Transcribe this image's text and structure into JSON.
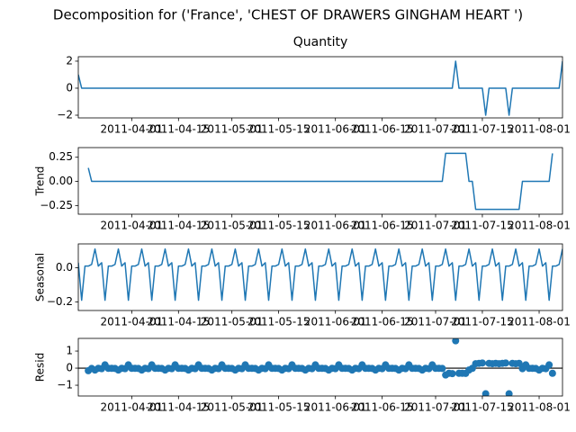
{
  "chart_data": {
    "title": "Decomposition for ('France', 'CHEST OF DRAWERS GINGHAM HEART ')",
    "color": "#1f77b4",
    "xlim": [
      "2011-03-16",
      "2011-08-08"
    ],
    "xticks": [
      "2011-04-01",
      "2011-04-15",
      "2011-05-01",
      "2011-05-15",
      "2011-06-01",
      "2011-06-15",
      "2011-07-01",
      "2011-07-15",
      "2011-08-01"
    ],
    "x": [
      "2011-03-16",
      "2011-03-17",
      "2011-03-18",
      "2011-03-19",
      "2011-03-20",
      "2011-03-21",
      "2011-03-22",
      "2011-03-23",
      "2011-03-24",
      "2011-03-25",
      "2011-03-26",
      "2011-03-27",
      "2011-03-28",
      "2011-03-29",
      "2011-03-30",
      "2011-03-31",
      "2011-04-01",
      "2011-04-02",
      "2011-04-03",
      "2011-04-04",
      "2011-04-05",
      "2011-04-06",
      "2011-04-07",
      "2011-04-08",
      "2011-04-09",
      "2011-04-10",
      "2011-04-11",
      "2011-04-12",
      "2011-04-13",
      "2011-04-14",
      "2011-04-15",
      "2011-04-16",
      "2011-04-17",
      "2011-04-18",
      "2011-04-19",
      "2011-04-20",
      "2011-04-21",
      "2011-04-22",
      "2011-04-23",
      "2011-04-24",
      "2011-04-25",
      "2011-04-26",
      "2011-04-27",
      "2011-04-28",
      "2011-04-29",
      "2011-04-30",
      "2011-05-01",
      "2011-05-02",
      "2011-05-03",
      "2011-05-04",
      "2011-05-05",
      "2011-05-06",
      "2011-05-07",
      "2011-05-08",
      "2011-05-09",
      "2011-05-10",
      "2011-05-11",
      "2011-05-12",
      "2011-05-13",
      "2011-05-14",
      "2011-05-15",
      "2011-05-16",
      "2011-05-17",
      "2011-05-18",
      "2011-05-19",
      "2011-05-20",
      "2011-05-21",
      "2011-05-22",
      "2011-05-23",
      "2011-05-24",
      "2011-05-25",
      "2011-05-26",
      "2011-05-27",
      "2011-05-28",
      "2011-05-29",
      "2011-05-30",
      "2011-05-31",
      "2011-06-01",
      "2011-06-02",
      "2011-06-03",
      "2011-06-04",
      "2011-06-05",
      "2011-06-06",
      "2011-06-07",
      "2011-06-08",
      "2011-06-09",
      "2011-06-10",
      "2011-06-11",
      "2011-06-12",
      "2011-06-13",
      "2011-06-14",
      "2011-06-15",
      "2011-06-16",
      "2011-06-17",
      "2011-06-18",
      "2011-06-19",
      "2011-06-20",
      "2011-06-21",
      "2011-06-22",
      "2011-06-23",
      "2011-06-24",
      "2011-06-25",
      "2011-06-26",
      "2011-06-27",
      "2011-06-28",
      "2011-06-29",
      "2011-06-30",
      "2011-07-01",
      "2011-07-02",
      "2011-07-03",
      "2011-07-04",
      "2011-07-05",
      "2011-07-06",
      "2011-07-07",
      "2011-07-08",
      "2011-07-09",
      "2011-07-10",
      "2011-07-11",
      "2011-07-12",
      "2011-07-13",
      "2011-07-14",
      "2011-07-15",
      "2011-07-16",
      "2011-07-17",
      "2011-07-18",
      "2011-07-19",
      "2011-07-20",
      "2011-07-21",
      "2011-07-22",
      "2011-07-23",
      "2011-07-24",
      "2011-07-25",
      "2011-07-26",
      "2011-07-27",
      "2011-07-28",
      "2011-07-29",
      "2011-07-30",
      "2011-07-31",
      "2011-08-01",
      "2011-08-02",
      "2011-08-03",
      "2011-08-04",
      "2011-08-05",
      "2011-08-06",
      "2011-08-07",
      "2011-08-08"
    ],
    "panels": [
      {
        "type": "line",
        "title": "Quantity",
        "ylim": [
          -2.2,
          2.33
        ],
        "yticks": [
          {
            "value": -2,
            "label": "−2"
          },
          0,
          2
        ],
        "values": [
          1,
          0,
          0,
          0,
          0,
          0,
          0,
          0,
          0,
          0,
          0,
          0,
          0,
          0,
          0,
          0,
          0,
          0,
          0,
          0,
          0,
          0,
          0,
          0,
          0,
          0,
          0,
          0,
          0,
          0,
          0,
          0,
          0,
          0,
          0,
          0,
          0,
          0,
          0,
          0,
          0,
          0,
          0,
          0,
          0,
          0,
          0,
          0,
          0,
          0,
          0,
          0,
          0,
          0,
          0,
          0,
          0,
          0,
          0,
          0,
          0,
          0,
          0,
          0,
          0,
          0,
          0,
          0,
          0,
          0,
          0,
          0,
          0,
          0,
          0,
          0,
          0,
          0,
          0,
          0,
          0,
          0,
          0,
          0,
          0,
          0,
          0,
          0,
          0,
          0,
          0,
          0,
          0,
          0,
          0,
          0,
          0,
          0,
          0,
          0,
          0,
          0,
          0,
          0,
          0,
          0,
          0,
          0,
          0,
          0,
          0,
          0,
          0,
          2,
          0,
          0,
          0,
          0,
          0,
          0,
          0,
          0,
          -2,
          0,
          0,
          0,
          0,
          0,
          0,
          -2,
          0,
          0,
          0,
          0,
          0,
          0,
          0,
          0,
          0,
          0,
          0,
          0,
          0,
          0,
          0,
          2
        ]
      },
      {
        "type": "line",
        "ylabel": "Trend",
        "ylim": [
          -0.34,
          0.35
        ],
        "yticks": [
          {
            "value": -0.25,
            "label": "−0.25"
          },
          {
            "value": 0,
            "label": "0.00"
          },
          0.25
        ],
        "values": [
          null,
          null,
          null,
          0.14,
          0,
          0,
          0,
          0,
          0,
          0,
          0,
          0,
          0,
          0,
          0,
          0,
          0,
          0,
          0,
          0,
          0,
          0,
          0,
          0,
          0,
          0,
          0,
          0,
          0,
          0,
          0,
          0,
          0,
          0,
          0,
          0,
          0,
          0,
          0,
          0,
          0,
          0,
          0,
          0,
          0,
          0,
          0,
          0,
          0,
          0,
          0,
          0,
          0,
          0,
          0,
          0,
          0,
          0,
          0,
          0,
          0,
          0,
          0,
          0,
          0,
          0,
          0,
          0,
          0,
          0,
          0,
          0,
          0,
          0,
          0,
          0,
          0,
          0,
          0,
          0,
          0,
          0,
          0,
          0,
          0,
          0,
          0,
          0,
          0,
          0,
          0,
          0,
          0,
          0,
          0,
          0,
          0,
          0,
          0,
          0,
          0,
          0,
          0,
          0,
          0,
          0,
          0,
          0,
          0,
          0,
          0.29,
          0.29,
          0.29,
          0.29,
          0.29,
          0.29,
          0.29,
          0,
          0,
          -0.29,
          -0.29,
          -0.29,
          -0.29,
          -0.29,
          -0.29,
          -0.29,
          -0.29,
          -0.29,
          -0.29,
          -0.29,
          -0.29,
          -0.29,
          -0.29,
          0,
          0,
          0,
          0,
          0,
          0,
          0,
          0,
          0,
          0.29,
          null,
          null,
          null
        ]
      },
      {
        "type": "line",
        "ylabel": "Seasonal",
        "ylim": [
          -0.25,
          0.14
        ],
        "yticks": [
          {
            "value": -0.2,
            "label": "−0.2"
          },
          {
            "value": 0,
            "label": "0.0"
          }
        ],
        "values": [
          0.03,
          -0.19,
          0.01,
          0.01,
          0.02,
          0.11,
          0.01,
          0.03,
          -0.19,
          0.01,
          0.01,
          0.02,
          0.11,
          0.01,
          0.03,
          -0.19,
          0.01,
          0.01,
          0.02,
          0.11,
          0.01,
          0.03,
          -0.19,
          0.01,
          0.01,
          0.02,
          0.11,
          0.01,
          0.03,
          -0.19,
          0.01,
          0.01,
          0.02,
          0.11,
          0.01,
          0.03,
          -0.19,
          0.01,
          0.01,
          0.02,
          0.11,
          0.01,
          0.03,
          -0.19,
          0.01,
          0.01,
          0.02,
          0.11,
          0.01,
          0.03,
          -0.19,
          0.01,
          0.01,
          0.02,
          0.11,
          0.01,
          0.03,
          -0.19,
          0.01,
          0.01,
          0.02,
          0.11,
          0.01,
          0.03,
          -0.19,
          0.01,
          0.01,
          0.02,
          0.11,
          0.01,
          0.03,
          -0.19,
          0.01,
          0.01,
          0.02,
          0.11,
          0.01,
          0.03,
          -0.19,
          0.01,
          0.01,
          0.02,
          0.11,
          0.01,
          0.03,
          -0.19,
          0.01,
          0.01,
          0.02,
          0.11,
          0.01,
          0.03,
          -0.19,
          0.01,
          0.01,
          0.02,
          0.11,
          0.01,
          0.03,
          -0.19,
          0.01,
          0.01,
          0.02,
          0.11,
          0.01,
          0.03,
          -0.19,
          0.01,
          0.01,
          0.02,
          0.11,
          0.01,
          0.03,
          -0.19,
          0.01,
          0.01,
          0.02,
          0.11,
          0.01,
          0.03,
          -0.19,
          0.01,
          0.01,
          0.02,
          0.11,
          0.01,
          0.03,
          -0.19,
          0.01,
          0.01,
          0.02,
          0.11,
          0.01,
          0.03,
          -0.19,
          0.01,
          0.01,
          0.02,
          0.11,
          0.01,
          0.03,
          -0.19,
          0.01,
          0.01,
          0.02,
          0.11
        ]
      },
      {
        "type": "scatter",
        "ylabel": "Resid",
        "ylim": [
          -1.63,
          1.74
        ],
        "yticks": [
          {
            "value": -1,
            "label": "−1"
          },
          0,
          1
        ],
        "values": [
          null,
          null,
          null,
          -0.15,
          -0.02,
          -0.11,
          -0.01,
          -0.03,
          0.19,
          -0.01,
          -0.01,
          -0.02,
          -0.11,
          -0.01,
          -0.03,
          0.19,
          -0.01,
          -0.01,
          -0.02,
          -0.11,
          -0.01,
          -0.03,
          0.19,
          -0.01,
          -0.01,
          -0.02,
          -0.11,
          -0.01,
          -0.03,
          0.19,
          -0.01,
          -0.01,
          -0.02,
          -0.11,
          -0.01,
          -0.03,
          0.19,
          -0.01,
          -0.01,
          -0.02,
          -0.11,
          -0.01,
          -0.03,
          0.19,
          -0.01,
          -0.01,
          -0.02,
          -0.11,
          -0.01,
          -0.03,
          0.19,
          -0.01,
          -0.01,
          -0.02,
          -0.11,
          -0.01,
          -0.03,
          0.19,
          -0.01,
          -0.01,
          -0.02,
          -0.11,
          -0.01,
          -0.03,
          0.19,
          -0.01,
          -0.01,
          -0.02,
          -0.11,
          -0.01,
          -0.03,
          0.19,
          -0.01,
          -0.01,
          -0.02,
          -0.11,
          -0.01,
          -0.03,
          0.19,
          -0.01,
          -0.01,
          -0.02,
          -0.11,
          -0.01,
          -0.03,
          0.19,
          -0.01,
          -0.01,
          -0.02,
          -0.11,
          -0.01,
          -0.03,
          0.19,
          -0.01,
          -0.01,
          -0.02,
          -0.11,
          -0.01,
          -0.03,
          0.19,
          -0.01,
          -0.01,
          -0.02,
          -0.11,
          -0.01,
          -0.03,
          0.19,
          -0.01,
          -0.01,
          -0.02,
          -0.4,
          -0.3,
          -0.32,
          1.6,
          -0.3,
          -0.3,
          -0.31,
          -0.11,
          -0.01,
          0.26,
          0.28,
          0.3,
          -1.5,
          0.28,
          0.26,
          0.28,
          0.26,
          0.28,
          0.3,
          -1.5,
          0.28,
          0.26,
          0.28,
          -0.03,
          0.19,
          -0.01,
          -0.01,
          -0.02,
          -0.11,
          -0.01,
          -0.03,
          0.19,
          -0.3,
          null,
          null,
          null
        ]
      }
    ]
  }
}
